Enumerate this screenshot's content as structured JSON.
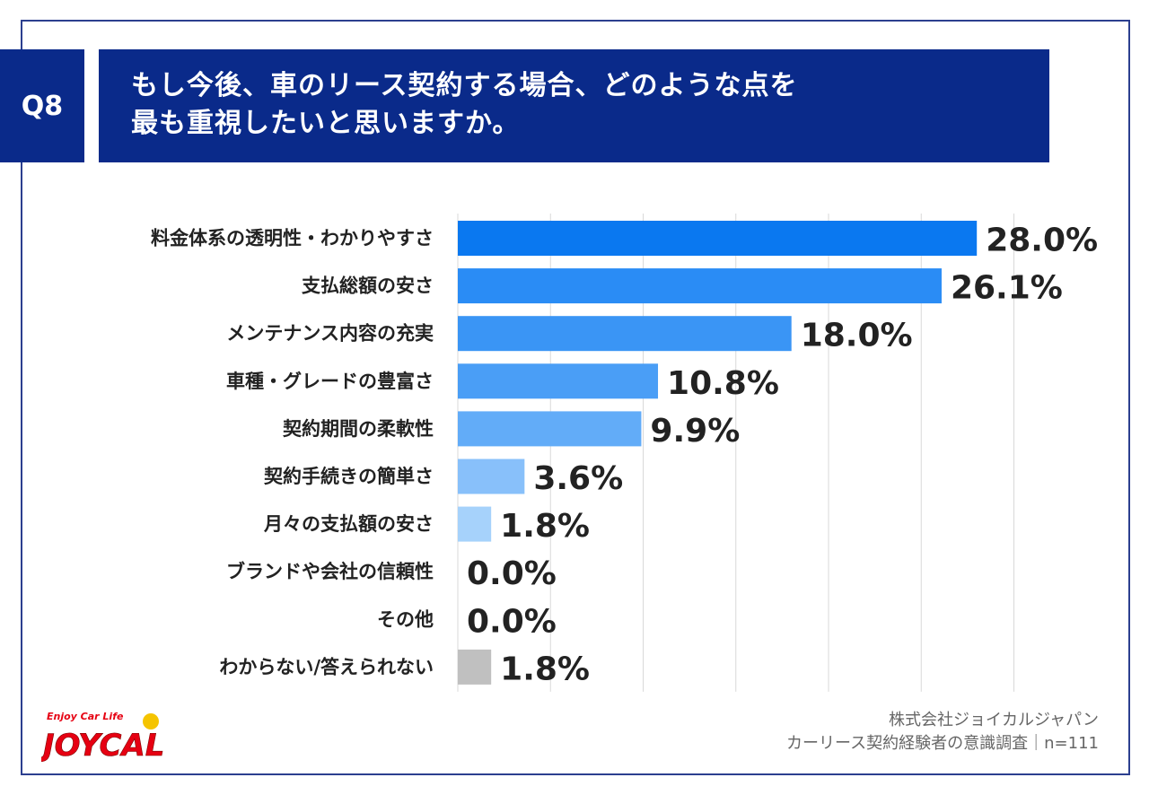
{
  "question": {
    "tag": "Q8",
    "line1": "もし今後、車のリース契約する場合、どのような点を",
    "line2": "最も重視したいと思いますか。"
  },
  "chart_data": {
    "type": "bar",
    "orientation": "horizontal",
    "categories": [
      "料金体系の透明性・わかりやすさ",
      "支払総額の安さ",
      "メンテナンス内容の充実",
      "車種・グレードの豊富さ",
      "契約期間の柔軟性",
      "契約手続きの簡単さ",
      "月々の支払額の安さ",
      "ブランドや会社の信頼性",
      "その他",
      "わからない/答えられない"
    ],
    "values": [
      28.0,
      26.1,
      18.0,
      10.8,
      9.9,
      3.6,
      1.8,
      0.0,
      0.0,
      1.8
    ],
    "value_labels": [
      "28.0%",
      "26.1%",
      "18.0%",
      "10.8%",
      "9.9%",
      "3.6%",
      "1.8%",
      "0.0%",
      "0.0%",
      "1.8%"
    ],
    "xlim": [
      0,
      30
    ],
    "grid": true,
    "bar_colors": [
      "#0a78f0",
      "#2a8cf5",
      "#3a95f5",
      "#4a9ef6",
      "#62acf8",
      "#88c0fa",
      "#a6d2fb",
      "#bcdcfc",
      "#bcdcfc",
      "#c0c0c0"
    ]
  },
  "footer": {
    "company": "株式会社ジョイカルジャパン",
    "survey": "カーリース契約経験者の意識調査｜n=111"
  },
  "logo": {
    "tagline": "Enjoy Car Life",
    "name": "JOYCAL"
  },
  "colors": {
    "header_bg": "#0a2a8a",
    "frame": "#2c3f8f",
    "logo_red": "#e60012",
    "logo_yellow": "#f5c400"
  }
}
